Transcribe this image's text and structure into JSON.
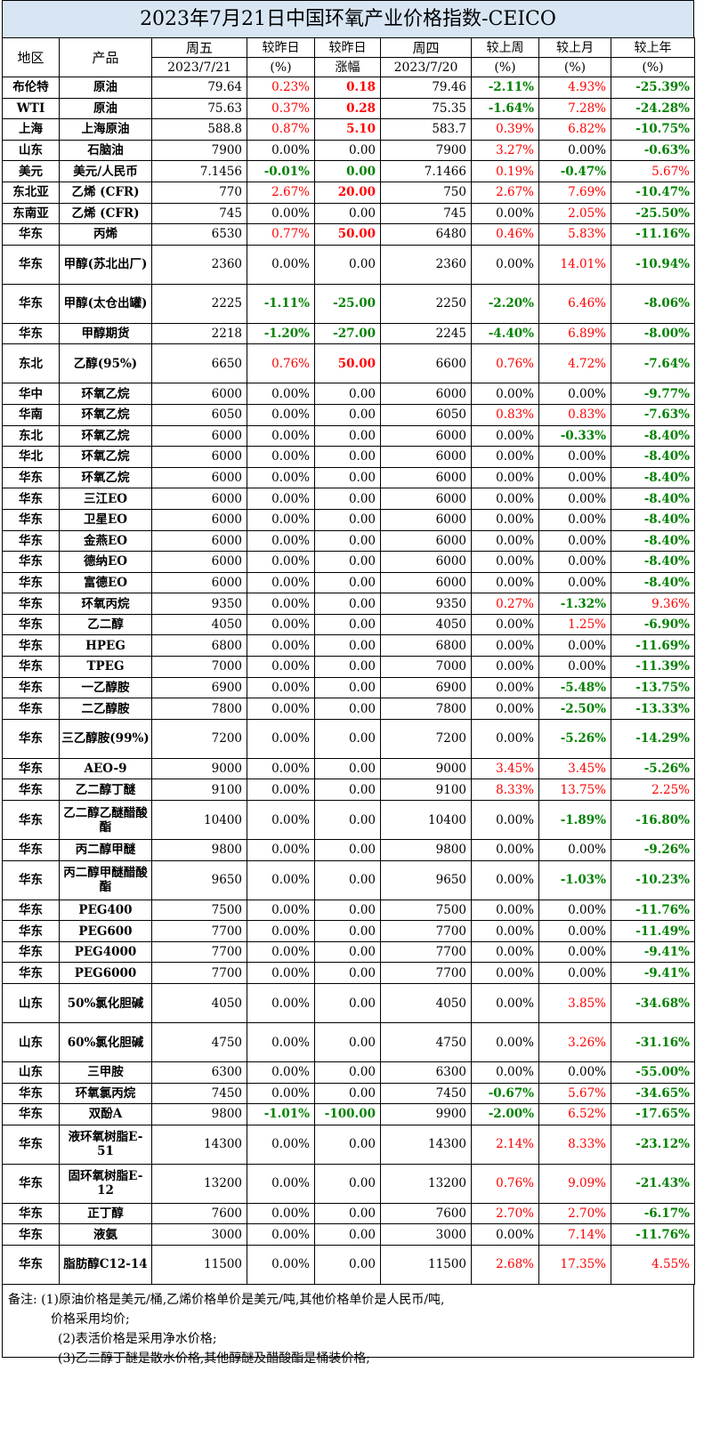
{
  "title": "2023年7月21日中国环氧产业价格指数-CEICO",
  "header": {
    "region": "地区",
    "product": "产品",
    "fri": "周五",
    "fri_date": "2023/7/21",
    "chg_yday_pct": "较昨日",
    "chg_yday_pct_unit": "(%)",
    "chg_yday_abs": "较昨日",
    "chg_yday_abs_unit": "涨幅",
    "thu": "周四",
    "thu_date": "2023/7/20",
    "week": "较上周",
    "week_unit": "(%)",
    "month": "较上月",
    "month_unit": "(%)",
    "year": "较上年",
    "year_unit": "(%)"
  },
  "rows": [
    {
      "region": "布伦特",
      "product": "原油",
      "fri": "79.64",
      "d_pct": "0.23%",
      "d_abs": "0.18",
      "thu": "79.46",
      "w": "-2.11%",
      "m": "4.93%",
      "y": "-25.39%",
      "c": [
        "red",
        "redb",
        "green",
        "red",
        "green"
      ]
    },
    {
      "region": "WTI",
      "product": "原油",
      "fri": "75.63",
      "d_pct": "0.37%",
      "d_abs": "0.28",
      "thu": "75.35",
      "w": "-1.64%",
      "m": "7.28%",
      "y": "-24.28%",
      "c": [
        "red",
        "redb",
        "green",
        "red",
        "green"
      ]
    },
    {
      "region": "上海",
      "product": "上海原油",
      "fri": "588.8",
      "d_pct": "0.87%",
      "d_abs": "5.10",
      "thu": "583.7",
      "w": "0.39%",
      "m": "6.82%",
      "y": "-10.75%",
      "c": [
        "red",
        "redb",
        "red",
        "red",
        "green"
      ]
    },
    {
      "region": "山东",
      "product": "石脑油",
      "fri": "7900",
      "d_pct": "0.00%",
      "d_abs": "0.00",
      "thu": "7900",
      "w": "3.27%",
      "m": "0.00%",
      "y": "-0.63%",
      "c": [
        "black",
        "black",
        "red",
        "black",
        "green"
      ]
    },
    {
      "region": "美元",
      "product": "美元/人民币",
      "fri": "7.1456",
      "d_pct": "-0.01%",
      "d_abs": "0.00",
      "thu": "7.1466",
      "w": "0.19%",
      "m": "-0.47%",
      "y": "5.67%",
      "c": [
        "green",
        "green",
        "red",
        "green",
        "red"
      ]
    },
    {
      "region": "东北亚",
      "product": "乙烯 (CFR)",
      "fri": "770",
      "d_pct": "2.67%",
      "d_abs": "20.00",
      "thu": "750",
      "w": "2.67%",
      "m": "7.69%",
      "y": "-10.47%",
      "c": [
        "red",
        "redb",
        "red",
        "red",
        "green"
      ]
    },
    {
      "region": "东南亚",
      "product": "乙烯 (CFR)",
      "fri": "745",
      "d_pct": "0.00%",
      "d_abs": "0.00",
      "thu": "745",
      "w": "0.00%",
      "m": "2.05%",
      "y": "-25.50%",
      "c": [
        "black",
        "black",
        "black",
        "red",
        "green"
      ]
    },
    {
      "region": "华东",
      "product": "丙烯",
      "fri": "6530",
      "d_pct": "0.77%",
      "d_abs": "50.00",
      "thu": "6480",
      "w": "0.46%",
      "m": "5.83%",
      "y": "-11.16%",
      "c": [
        "red",
        "redb",
        "red",
        "red",
        "green"
      ]
    },
    {
      "region": "华东",
      "product": "甲醇(苏北出厂)",
      "fri": "2360",
      "d_pct": "0.00%",
      "d_abs": "0.00",
      "thu": "2360",
      "w": "0.00%",
      "m": "14.01%",
      "y": "-10.94%",
      "c": [
        "black",
        "black",
        "black",
        "red",
        "green"
      ],
      "tall": true
    },
    {
      "region": "华东",
      "product": "甲醇(太仓出罐)",
      "fri": "2225",
      "d_pct": "-1.11%",
      "d_abs": "-25.00",
      "thu": "2250",
      "w": "-2.20%",
      "m": "6.46%",
      "y": "-8.06%",
      "c": [
        "green",
        "green",
        "green",
        "red",
        "green"
      ],
      "tall": true
    },
    {
      "region": "华东",
      "product": "甲醇期货",
      "fri": "2218",
      "d_pct": "-1.20%",
      "d_abs": "-27.00",
      "thu": "2245",
      "w": "-4.40%",
      "m": "6.89%",
      "y": "-8.00%",
      "c": [
        "green",
        "green",
        "green",
        "red",
        "green"
      ]
    },
    {
      "region": "东北",
      "product": "乙醇(95%)",
      "fri": "6650",
      "d_pct": "0.76%",
      "d_abs": "50.00",
      "thu": "6600",
      "w": "0.76%",
      "m": "4.72%",
      "y": "-7.64%",
      "c": [
        "red",
        "redb",
        "red",
        "red",
        "green"
      ],
      "tall": true
    },
    {
      "region": "华中",
      "product": "环氧乙烷",
      "fri": "6000",
      "d_pct": "0.00%",
      "d_abs": "0.00",
      "thu": "6000",
      "w": "0.00%",
      "m": "0.00%",
      "y": "-9.77%",
      "c": [
        "black",
        "black",
        "black",
        "black",
        "green"
      ]
    },
    {
      "region": "华南",
      "product": "环氧乙烷",
      "fri": "6050",
      "d_pct": "0.00%",
      "d_abs": "0.00",
      "thu": "6050",
      "w": "0.83%",
      "m": "0.83%",
      "y": "-7.63%",
      "c": [
        "black",
        "black",
        "red",
        "red",
        "green"
      ]
    },
    {
      "region": "东北",
      "product": "环氧乙烷",
      "fri": "6000",
      "d_pct": "0.00%",
      "d_abs": "0.00",
      "thu": "6000",
      "w": "0.00%",
      "m": "-0.33%",
      "y": "-8.40%",
      "c": [
        "black",
        "black",
        "black",
        "green",
        "green"
      ]
    },
    {
      "region": "华北",
      "product": "环氧乙烷",
      "fri": "6000",
      "d_pct": "0.00%",
      "d_abs": "0.00",
      "thu": "6000",
      "w": "0.00%",
      "m": "0.00%",
      "y": "-8.40%",
      "c": [
        "black",
        "black",
        "black",
        "black",
        "green"
      ]
    },
    {
      "region": "华东",
      "product": "环氧乙烷",
      "fri": "6000",
      "d_pct": "0.00%",
      "d_abs": "0.00",
      "thu": "6000",
      "w": "0.00%",
      "m": "0.00%",
      "y": "-8.40%",
      "c": [
        "black",
        "black",
        "black",
        "black",
        "green"
      ]
    },
    {
      "region": "华东",
      "product": "三江EO",
      "fri": "6000",
      "d_pct": "0.00%",
      "d_abs": "0.00",
      "thu": "6000",
      "w": "0.00%",
      "m": "0.00%",
      "y": "-8.40%",
      "c": [
        "black",
        "black",
        "black",
        "black",
        "green"
      ]
    },
    {
      "region": "华东",
      "product": "卫星EO",
      "fri": "6000",
      "d_pct": "0.00%",
      "d_abs": "0.00",
      "thu": "6000",
      "w": "0.00%",
      "m": "0.00%",
      "y": "-8.40%",
      "c": [
        "black",
        "black",
        "black",
        "black",
        "green"
      ]
    },
    {
      "region": "华东",
      "product": "金燕EO",
      "fri": "6000",
      "d_pct": "0.00%",
      "d_abs": "0.00",
      "thu": "6000",
      "w": "0.00%",
      "m": "0.00%",
      "y": "-8.40%",
      "c": [
        "black",
        "black",
        "black",
        "black",
        "green"
      ]
    },
    {
      "region": "华东",
      "product": "德纳EO",
      "fri": "6000",
      "d_pct": "0.00%",
      "d_abs": "0.00",
      "thu": "6000",
      "w": "0.00%",
      "m": "0.00%",
      "y": "-8.40%",
      "c": [
        "black",
        "black",
        "black",
        "black",
        "green"
      ]
    },
    {
      "region": "华东",
      "product": "富德EO",
      "fri": "6000",
      "d_pct": "0.00%",
      "d_abs": "0.00",
      "thu": "6000",
      "w": "0.00%",
      "m": "0.00%",
      "y": "-8.40%",
      "c": [
        "black",
        "black",
        "black",
        "black",
        "green"
      ]
    },
    {
      "region": "华东",
      "product": "环氧丙烷",
      "fri": "9350",
      "d_pct": "0.00%",
      "d_abs": "0.00",
      "thu": "9350",
      "w": "0.27%",
      "m": "-1.32%",
      "y": "9.36%",
      "c": [
        "black",
        "black",
        "red",
        "green",
        "red"
      ]
    },
    {
      "region": "华东",
      "product": "乙二醇",
      "fri": "4050",
      "d_pct": "0.00%",
      "d_abs": "0.00",
      "thu": "4050",
      "w": "0.00%",
      "m": "1.25%",
      "y": "-6.90%",
      "c": [
        "black",
        "black",
        "black",
        "red",
        "green"
      ]
    },
    {
      "region": "华东",
      "product": "HPEG",
      "fri": "6800",
      "d_pct": "0.00%",
      "d_abs": "0.00",
      "thu": "6800",
      "w": "0.00%",
      "m": "0.00%",
      "y": "-11.69%",
      "c": [
        "black",
        "black",
        "black",
        "black",
        "green"
      ]
    },
    {
      "region": "华东",
      "product": "TPEG",
      "fri": "7000",
      "d_pct": "0.00%",
      "d_abs": "0.00",
      "thu": "7000",
      "w": "0.00%",
      "m": "0.00%",
      "y": "-11.39%",
      "c": [
        "black",
        "black",
        "black",
        "black",
        "green"
      ]
    },
    {
      "region": "华东",
      "product": "一乙醇胺",
      "fri": "6900",
      "d_pct": "0.00%",
      "d_abs": "0.00",
      "thu": "6900",
      "w": "0.00%",
      "m": "-5.48%",
      "y": "-13.75%",
      "c": [
        "black",
        "black",
        "black",
        "green",
        "green"
      ]
    },
    {
      "region": "华东",
      "product": "二乙醇胺",
      "fri": "7800",
      "d_pct": "0.00%",
      "d_abs": "0.00",
      "thu": "7800",
      "w": "0.00%",
      "m": "-2.50%",
      "y": "-13.33%",
      "c": [
        "black",
        "black",
        "black",
        "green",
        "green"
      ]
    },
    {
      "region": "华东",
      "product": "三乙醇胺(99%)",
      "fri": "7200",
      "d_pct": "0.00%",
      "d_abs": "0.00",
      "thu": "7200",
      "w": "0.00%",
      "m": "-5.26%",
      "y": "-14.29%",
      "c": [
        "black",
        "black",
        "black",
        "green",
        "green"
      ],
      "tall": true
    },
    {
      "region": "华东",
      "product": "AEO-9",
      "fri": "9000",
      "d_pct": "0.00%",
      "d_abs": "0.00",
      "thu": "9000",
      "w": "3.45%",
      "m": "3.45%",
      "y": "-5.26%",
      "c": [
        "black",
        "black",
        "red",
        "red",
        "green"
      ]
    },
    {
      "region": "华东",
      "product": "乙二醇丁醚",
      "fri": "9100",
      "d_pct": "0.00%",
      "d_abs": "0.00",
      "thu": "9100",
      "w": "8.33%",
      "m": "13.75%",
      "y": "2.25%",
      "c": [
        "black",
        "black",
        "red",
        "red",
        "red"
      ]
    },
    {
      "region": "华东",
      "product": "乙二醇乙醚醋酸酯",
      "fri": "10400",
      "d_pct": "0.00%",
      "d_abs": "0.00",
      "thu": "10400",
      "w": "0.00%",
      "m": "-1.89%",
      "y": "-16.80%",
      "c": [
        "black",
        "black",
        "black",
        "green",
        "green"
      ],
      "tall": true
    },
    {
      "region": "华东",
      "product": "丙二醇甲醚",
      "fri": "9800",
      "d_pct": "0.00%",
      "d_abs": "0.00",
      "thu": "9800",
      "w": "0.00%",
      "m": "0.00%",
      "y": "-9.26%",
      "c": [
        "black",
        "black",
        "black",
        "black",
        "green"
      ]
    },
    {
      "region": "华东",
      "product": "丙二醇甲醚醋酸酯",
      "fri": "9650",
      "d_pct": "0.00%",
      "d_abs": "0.00",
      "thu": "9650",
      "w": "0.00%",
      "m": "-1.03%",
      "y": "-10.23%",
      "c": [
        "black",
        "black",
        "black",
        "green",
        "green"
      ],
      "tall": true
    },
    {
      "region": "华东",
      "product": "PEG400",
      "fri": "7500",
      "d_pct": "0.00%",
      "d_abs": "0.00",
      "thu": "7500",
      "w": "0.00%",
      "m": "0.00%",
      "y": "-11.76%",
      "c": [
        "black",
        "black",
        "black",
        "black",
        "green"
      ]
    },
    {
      "region": "华东",
      "product": "PEG600",
      "fri": "7700",
      "d_pct": "0.00%",
      "d_abs": "0.00",
      "thu": "7700",
      "w": "0.00%",
      "m": "0.00%",
      "y": "-11.49%",
      "c": [
        "black",
        "black",
        "black",
        "black",
        "green"
      ]
    },
    {
      "region": "华东",
      "product": "PEG4000",
      "fri": "7700",
      "d_pct": "0.00%",
      "d_abs": "0.00",
      "thu": "7700",
      "w": "0.00%",
      "m": "0.00%",
      "y": "-9.41%",
      "c": [
        "black",
        "black",
        "black",
        "black",
        "green"
      ]
    },
    {
      "region": "华东",
      "product": "PEG6000",
      "fri": "7700",
      "d_pct": "0.00%",
      "d_abs": "0.00",
      "thu": "7700",
      "w": "0.00%",
      "m": "0.00%",
      "y": "-9.41%",
      "c": [
        "black",
        "black",
        "black",
        "black",
        "green"
      ]
    },
    {
      "region": "山东",
      "product": "50%氯化胆碱",
      "fri": "4050",
      "d_pct": "0.00%",
      "d_abs": "0.00",
      "thu": "4050",
      "w": "0.00%",
      "m": "3.85%",
      "y": "-34.68%",
      "c": [
        "black",
        "black",
        "black",
        "red",
        "green"
      ],
      "tall": true
    },
    {
      "region": "山东",
      "product": "60%氯化胆碱",
      "fri": "4750",
      "d_pct": "0.00%",
      "d_abs": "0.00",
      "thu": "4750",
      "w": "0.00%",
      "m": "3.26%",
      "y": "-31.16%",
      "c": [
        "black",
        "black",
        "black",
        "red",
        "green"
      ],
      "tall": true
    },
    {
      "region": "山东",
      "product": "三甲胺",
      "fri": "6300",
      "d_pct": "0.00%",
      "d_abs": "0.00",
      "thu": "6300",
      "w": "0.00%",
      "m": "0.00%",
      "y": "-55.00%",
      "c": [
        "black",
        "black",
        "black",
        "black",
        "green"
      ]
    },
    {
      "region": "华东",
      "product": "环氧氯丙烷",
      "fri": "7450",
      "d_pct": "0.00%",
      "d_abs": "0.00",
      "thu": "7450",
      "w": "-0.67%",
      "m": "5.67%",
      "y": "-34.65%",
      "c": [
        "black",
        "black",
        "green",
        "red",
        "green"
      ]
    },
    {
      "region": "华东",
      "product": "双酚A",
      "fri": "9800",
      "d_pct": "-1.01%",
      "d_abs": "-100.00",
      "thu": "9900",
      "w": "-2.00%",
      "m": "6.52%",
      "y": "-17.65%",
      "c": [
        "green",
        "green",
        "green",
        "red",
        "green"
      ]
    },
    {
      "region": "华东",
      "product": "液环氧树脂E-51",
      "fri": "14300",
      "d_pct": "0.00%",
      "d_abs": "0.00",
      "thu": "14300",
      "w": "2.14%",
      "m": "8.33%",
      "y": "-23.12%",
      "c": [
        "black",
        "black",
        "red",
        "red",
        "green"
      ],
      "tall": true
    },
    {
      "region": "华东",
      "product": "固环氧树脂E-12",
      "fri": "13200",
      "d_pct": "0.00%",
      "d_abs": "0.00",
      "thu": "13200",
      "w": "0.76%",
      "m": "9.09%",
      "y": "-21.43%",
      "c": [
        "black",
        "black",
        "red",
        "red",
        "green"
      ],
      "tall": true
    },
    {
      "region": "华东",
      "product": "正丁醇",
      "fri": "7600",
      "d_pct": "0.00%",
      "d_abs": "0.00",
      "thu": "7600",
      "w": "2.70%",
      "m": "2.70%",
      "y": "-6.17%",
      "c": [
        "black",
        "black",
        "red",
        "red",
        "green"
      ]
    },
    {
      "region": "华东",
      "product": "液氨",
      "fri": "3000",
      "d_pct": "0.00%",
      "d_abs": "0.00",
      "thu": "3000",
      "w": "0.00%",
      "m": "7.14%",
      "y": "-11.76%",
      "c": [
        "black",
        "black",
        "black",
        "red",
        "green"
      ]
    },
    {
      "region": "华东",
      "product": "脂肪醇C12-14",
      "fri": "11500",
      "d_pct": "0.00%",
      "d_abs": "0.00",
      "thu": "11500",
      "w": "2.68%",
      "m": "17.35%",
      "y": "4.55%",
      "c": [
        "black",
        "black",
        "red",
        "red",
        "red"
      ],
      "tall": true
    }
  ],
  "notes": {
    "line1": "备注: (1)原油价格是美元/桶,乙烯价格单价是美元/吨,其他价格单价是人民币/吨,",
    "line1b": "价格采用均价;",
    "line2": "(2)表活价格是采用净水价格;",
    "line3": "(3)乙二醇丁醚是散水价格,其他醇醚及醋酸酯是桶装价格;"
  },
  "colors": {
    "up": "#ff0000",
    "down": "#008000",
    "title_bg": "#d8e6f4"
  }
}
